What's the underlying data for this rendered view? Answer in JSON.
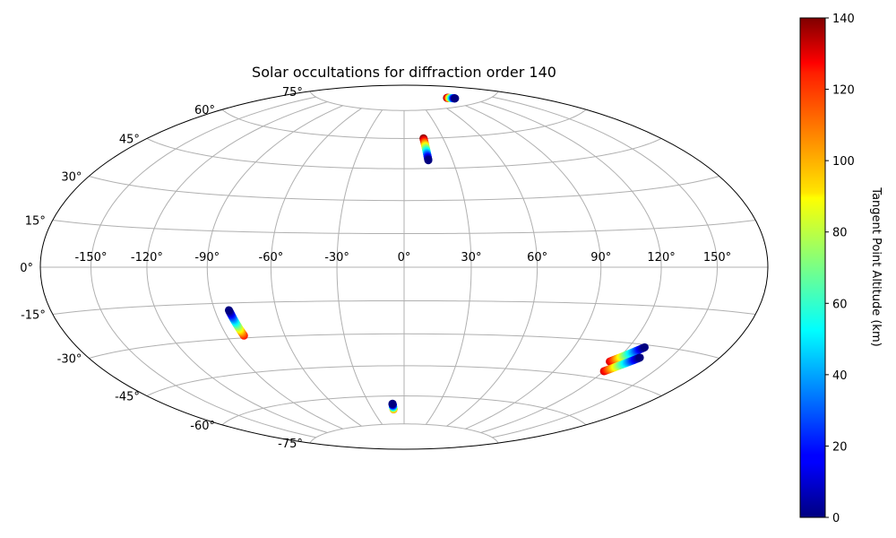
{
  "chart_data": {
    "type": "scatter",
    "projection": "hammer",
    "title": "Solar occultations for diffraction order 140",
    "grid": true,
    "lon_ticks": [
      -150,
      -120,
      -90,
      -60,
      -30,
      0,
      30,
      60,
      90,
      120,
      150
    ],
    "lon_tick_labels": [
      "-150°",
      "-120°",
      "-90°",
      "-60°",
      "-30°",
      "0°",
      "30°",
      "60°",
      "90°",
      "120°",
      "150°"
    ],
    "lat_ticks": [
      -75,
      -60,
      -45,
      -30,
      -15,
      0,
      15,
      30,
      45,
      60,
      75
    ],
    "lat_tick_labels": [
      "-75°",
      "-60°",
      "-45°",
      "-30°",
      "-15°",
      "0°",
      "15°",
      "30°",
      "45°",
      "60°",
      "75°"
    ],
    "colorbar": {
      "label": "Tangent Point Altitude (km)",
      "colormap": "jet",
      "range": [
        0,
        140
      ],
      "ticks": [
        0,
        20,
        40,
        60,
        80,
        100,
        120,
        140
      ],
      "tick_labels": [
        "0",
        "20",
        "40",
        "60",
        "80",
        "100",
        "120",
        "140"
      ]
    },
    "tracks": [
      {
        "lon_start": 15,
        "lat_start": 60,
        "lon_end": 15,
        "lat_end": 49,
        "alt_start": 140,
        "alt_end": 0
      },
      {
        "lon_start": -81,
        "lat_start": -29,
        "lon_end": -83,
        "lat_end": -18,
        "alt_start": 120,
        "alt_end": 0
      },
      {
        "lon_start": 92,
        "lat_start": 80,
        "lon_end": 102,
        "lat_end": 79,
        "alt_start": 140,
        "alt_end": 0
      },
      {
        "lon_start": -10,
        "lat_start": -67,
        "lon_end": -10,
        "lat_end": -64,
        "alt_start": 105,
        "alt_end": 0
      },
      {
        "lon_start": 117,
        "lat_start": -38,
        "lon_end": 129,
        "lat_end": -31,
        "alt_start": 128,
        "alt_end": 0
      },
      {
        "lon_start": 120,
        "lat_start": -42,
        "lon_end": 132,
        "lat_end": -35,
        "alt_start": 128,
        "alt_end": 0
      }
    ]
  }
}
